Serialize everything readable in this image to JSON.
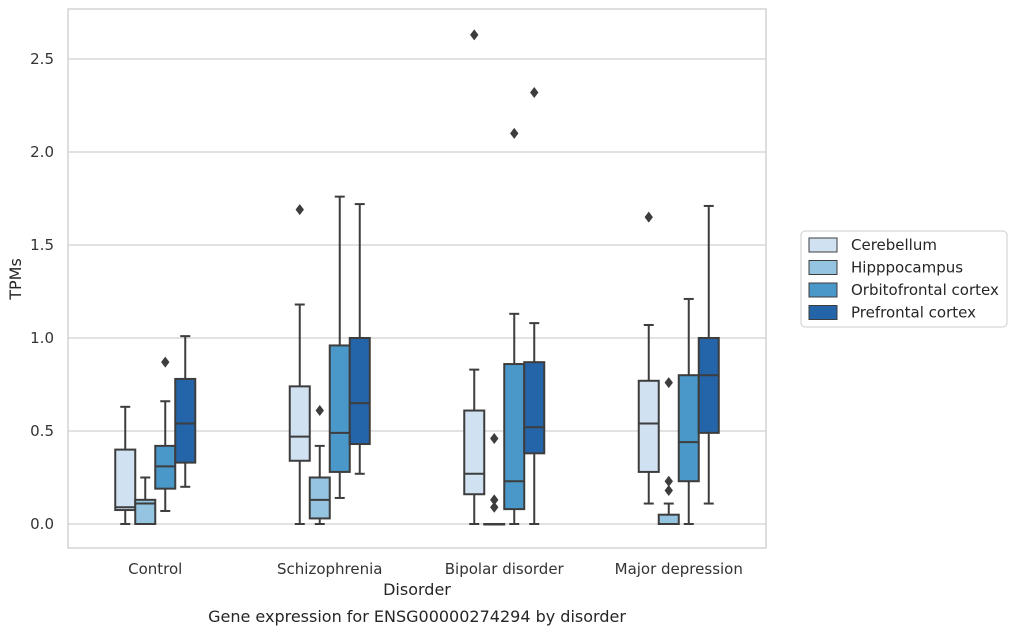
{
  "chart_data": {
    "type": "box",
    "caption": "Gene expression for ENSG00000274294 by disorder",
    "xlabel": "Disorder",
    "ylabel": "TPMs",
    "ylim": [
      -0.13,
      2.78
    ],
    "yticks": [
      0.0,
      0.5,
      1.0,
      1.5,
      2.0,
      2.5
    ],
    "ytick_labels": [
      "0.0",
      "0.5",
      "1.0",
      "1.5",
      "2.0",
      "2.5"
    ],
    "grid": "horizontal",
    "legend_position": "right",
    "categories": [
      "Control",
      "Schizophrenia",
      "Bipolar disorder",
      "Major depression"
    ],
    "series": [
      {
        "name": "Cerebellum",
        "color": "#d0e1f2",
        "boxes": [
          {
            "whislo": 0.0,
            "q1": 0.075,
            "med": 0.09,
            "q3": 0.4,
            "whishi": 0.63,
            "fliers": []
          },
          {
            "whislo": 0.0,
            "q1": 0.34,
            "med": 0.47,
            "q3": 0.74,
            "whishi": 1.18,
            "fliers": [
              1.69
            ]
          },
          {
            "whislo": 0.0,
            "q1": 0.16,
            "med": 0.27,
            "q3": 0.61,
            "whishi": 0.83,
            "fliers": [
              2.63
            ]
          },
          {
            "whislo": 0.11,
            "q1": 0.28,
            "med": 0.54,
            "q3": 0.77,
            "whishi": 1.07,
            "fliers": [
              1.65
            ]
          }
        ]
      },
      {
        "name": "Hipppocampus",
        "color": "#94c4df",
        "boxes": [
          {
            "whislo": 0.0,
            "q1": 0.0,
            "med": 0.11,
            "q3": 0.13,
            "whishi": 0.25,
            "fliers": []
          },
          {
            "whislo": 0.0,
            "q1": 0.03,
            "med": 0.13,
            "q3": 0.25,
            "whishi": 0.42,
            "fliers": [
              0.61
            ]
          },
          {
            "whislo": 0.0,
            "q1": 0.0,
            "med": 0.0,
            "q3": 0.0,
            "whishi": 0.0,
            "fliers": [
              0.09,
              0.13,
              0.46
            ]
          },
          {
            "whislo": 0.0,
            "q1": 0.0,
            "med": 0.0,
            "q3": 0.05,
            "whishi": 0.11,
            "fliers": [
              0.18,
              0.23,
              0.76
            ]
          }
        ]
      },
      {
        "name": "Orbitofrontal cortex",
        "color": "#4a98c9",
        "boxes": [
          {
            "whislo": 0.07,
            "q1": 0.19,
            "med": 0.31,
            "q3": 0.42,
            "whishi": 0.66,
            "fliers": [
              0.87
            ]
          },
          {
            "whislo": 0.14,
            "q1": 0.28,
            "med": 0.49,
            "q3": 0.96,
            "whishi": 1.76,
            "fliers": []
          },
          {
            "whislo": 0.0,
            "q1": 0.08,
            "med": 0.23,
            "q3": 0.86,
            "whishi": 1.13,
            "fliers": [
              2.1
            ]
          },
          {
            "whislo": 0.0,
            "q1": 0.23,
            "med": 0.44,
            "q3": 0.8,
            "whishi": 1.21,
            "fliers": []
          }
        ]
      },
      {
        "name": "Prefrontal cortex",
        "color": "#2464a9",
        "boxes": [
          {
            "whislo": 0.2,
            "q1": 0.33,
            "med": 0.54,
            "q3": 0.78,
            "whishi": 1.01,
            "fliers": []
          },
          {
            "whislo": 0.27,
            "q1": 0.43,
            "med": 0.65,
            "q3": 1.0,
            "whishi": 1.72,
            "fliers": []
          },
          {
            "whislo": 0.0,
            "q1": 0.38,
            "med": 0.52,
            "q3": 0.87,
            "whishi": 1.08,
            "fliers": [
              2.32
            ]
          },
          {
            "whislo": 0.11,
            "q1": 0.49,
            "med": 0.8,
            "q3": 1.0,
            "whishi": 1.71,
            "fliers": []
          }
        ]
      }
    ]
  }
}
